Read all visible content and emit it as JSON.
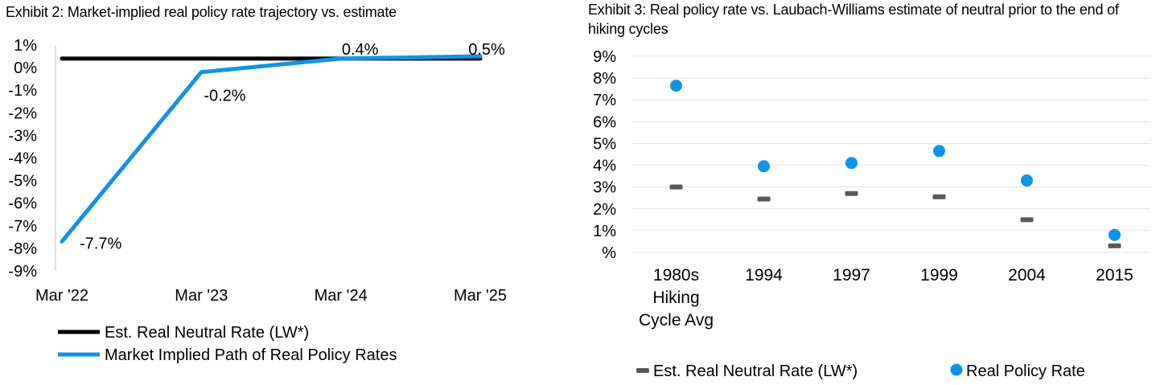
{
  "charts": [
    {
      "type": "line",
      "title": "Exhibit 2: Market-implied real policy rate trajectory vs. estimate",
      "categories": [
        "Mar '22",
        "Mar '23",
        "Mar '24",
        "Mar '25"
      ],
      "y_ticks": [
        "1%",
        "0%",
        "-1%",
        "-2%",
        "-3%",
        "-4%",
        "-5%",
        "-6%",
        "-7%",
        "-8%",
        "-9%"
      ],
      "ylim": [
        -9,
        1
      ],
      "series": [
        {
          "name": "Est. Real Neutral Rate (LW*)",
          "color": "#000000",
          "values": [
            0.4,
            0.4,
            0.4,
            0.4
          ]
        },
        {
          "name": "Market Implied Path of Real Policy Rates",
          "color": "#1192E8",
          "values": [
            -7.7,
            -0.2,
            0.4,
            0.5
          ]
        }
      ],
      "data_labels": [
        "-7.7%",
        "-0.2%",
        "0.4%",
        "0.5%"
      ],
      "legend_position": "bottom"
    },
    {
      "type": "scatter",
      "title": "Exhibit 3: Real policy rate vs. Laubach-Williams estimate of neutral prior to the end of hiking cycles",
      "categories": [
        "1980s Hiking Cycle Avg",
        "1994",
        "1997",
        "1999",
        "2004",
        "2015"
      ],
      "y_ticks": [
        "9%",
        "8%",
        "7%",
        "6%",
        "5%",
        "4%",
        "3%",
        "2%",
        "1%",
        "%"
      ],
      "ylim": [
        0,
        9
      ],
      "series": [
        {
          "name": "Est. Real Neutral Rate (LW*)",
          "color": "#595959",
          "marker": "dash",
          "values": [
            3.0,
            2.45,
            2.7,
            2.55,
            1.5,
            0.3
          ]
        },
        {
          "name": "Real Policy Rate",
          "color": "#1192E8",
          "marker": "circle",
          "values": [
            7.65,
            3.95,
            4.1,
            4.65,
            3.3,
            0.8
          ]
        }
      ],
      "legend_position": "bottom"
    }
  ]
}
